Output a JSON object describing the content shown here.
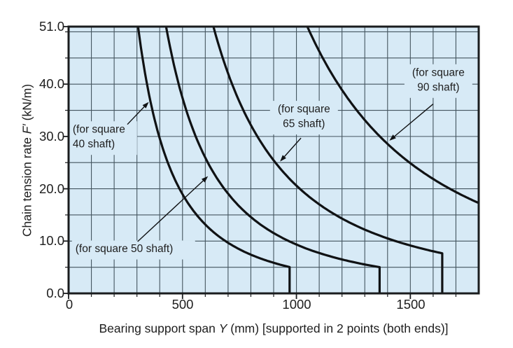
{
  "figure": {
    "background": "#ffffff",
    "plot_fill": "#d7eaf6",
    "grid_color": "#44555f",
    "curve_color": "#101214",
    "border_color": "#1a1c1e",
    "text_color": "#1e1e1e"
  },
  "labels": {
    "ylabel_pre": "Chain tension rate ",
    "ylabel_var": "F′",
    "ylabel_post": "  (kN/m)",
    "xlabel_pre": "Bearing support span ",
    "xlabel_var": "Y",
    "xlabel_post": " (mm) [supported in 2 points (both ends)]"
  },
  "chart_data": {
    "type": "line",
    "title": "",
    "xlabel": "Bearing support span Y (mm) [supported in 2 points (both ends)]",
    "ylabel": "Chain tension rate F′ (kN/m)",
    "xlim": [
      0,
      1800
    ],
    "ylim": [
      0,
      51
    ],
    "grid": true,
    "x_grid_step": 100,
    "y_grid_step": 5,
    "x_ticks": [
      0,
      500,
      1000,
      1500
    ],
    "x_tick_labels": [
      "0",
      "500",
      "1000",
      "1500"
    ],
    "y_ticks": [
      0,
      10,
      20,
      30,
      40,
      51
    ],
    "y_tick_labels": [
      "0.0",
      "10.0",
      "20.0",
      "30.0",
      "40.0",
      "51.0"
    ],
    "legend": false,
    "series": [
      {
        "name": "square 40 shaft",
        "label": "(for square 40 shaft)",
        "model": "F' = k / Y^2",
        "k": 4740000,
        "Y_start": 305,
        "Y_end": 970,
        "F_at_end": 5.0,
        "drops_to_zero": true,
        "points": [
          [
            305,
            51
          ],
          [
            344,
            40
          ],
          [
            397,
            30
          ],
          [
            487,
            20
          ],
          [
            688,
            10
          ],
          [
            970,
            5.0
          ],
          [
            970,
            0
          ]
        ]
      },
      {
        "name": "square 50 shaft",
        "label": "(for square 50 shaft)",
        "model": "F' = k / Y^2",
        "k": 9340000,
        "Y_start": 428,
        "Y_end": 1365,
        "F_at_end": 5.0,
        "drops_to_zero": true,
        "points": [
          [
            428,
            51
          ],
          [
            483,
            40
          ],
          [
            558,
            30
          ],
          [
            683,
            20
          ],
          [
            966,
            10
          ],
          [
            1365,
            5.0
          ],
          [
            1365,
            0
          ]
        ]
      },
      {
        "name": "square 65 shaft",
        "label": "(for square 65 shaft)",
        "model": "F' = k / Y^2",
        "k": 20600000,
        "Y_start": 636,
        "Y_end": 1640,
        "F_at_end": 7.7,
        "drops_to_zero": true,
        "points": [
          [
            636,
            51
          ],
          [
            718,
            40
          ],
          [
            829,
            30
          ],
          [
            1015,
            20
          ],
          [
            1435,
            10
          ],
          [
            1640,
            7.7
          ],
          [
            1640,
            0
          ]
        ]
      },
      {
        "name": "square 90 shaft",
        "label": "(for square 90 shaft)",
        "model": "F' = k / Y^2",
        "k": 56000000,
        "Y_start": 1048,
        "Y_end": 1800,
        "F_at_end": 17.3,
        "drops_to_zero": false,
        "points": [
          [
            1048,
            51
          ],
          [
            1183,
            40
          ],
          [
            1366,
            30
          ],
          [
            1673,
            20
          ],
          [
            1800,
            17.3
          ]
        ]
      }
    ],
    "annotations": [
      {
        "name": "square-40-label",
        "lines": [
          "(for square",
          "40 shaft)"
        ],
        "align": "left",
        "text_at": {
          "Y": 18,
          "F": 32.5
        },
        "arrow": {
          "from": {
            "Y": 258,
            "F": 32.3
          },
          "to": {
            "Y": 352,
            "F": 36.6
          }
        }
      },
      {
        "name": "square-50-label",
        "lines": [
          "(for square 50 shaft)"
        ],
        "align": "left",
        "text_at": {
          "Y": 30,
          "F": 9.7
        },
        "arrow": {
          "from": {
            "Y": 303,
            "F": 9.9
          },
          "to": {
            "Y": 612,
            "F": 22.4
          }
        }
      },
      {
        "name": "square-65-label",
        "lines": [
          "(for square",
          "65 shaft)"
        ],
        "align": "center",
        "text_at": {
          "Y": 1033,
          "F": 36.4
        },
        "arrow": {
          "from": {
            "Y": 1020,
            "F": 29.7
          },
          "to": {
            "Y": 928,
            "F": 25.2
          }
        }
      },
      {
        "name": "square-90-label",
        "lines": [
          "(for square",
          "90 shaft)"
        ],
        "align": "center",
        "text_at": {
          "Y": 1623,
          "F": 43.4
        },
        "arrow": {
          "from": {
            "Y": 1600,
            "F": 36.2
          },
          "to": {
            "Y": 1408,
            "F": 29.2
          }
        }
      }
    ]
  }
}
